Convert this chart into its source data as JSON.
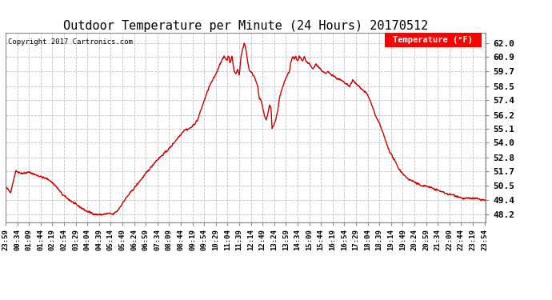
{
  "title": "Outdoor Temperature per Minute (24 Hours) 20170512",
  "copyright_text": "Copyright 2017 Cartronics.com",
  "legend_label": "Temperature (°F)",
  "background_color": "#ffffff",
  "plot_background_color": "#ffffff",
  "grid_color": "#bbbbbb",
  "line_color": "#cc0000",
  "line_width": 1.0,
  "title_fontsize": 11,
  "yticks": [
    48.2,
    49.4,
    50.5,
    51.7,
    52.8,
    54.0,
    55.1,
    56.2,
    57.4,
    58.5,
    59.7,
    60.9,
    62.0
  ],
  "ylim": [
    47.6,
    62.8
  ],
  "xtick_step": 35
}
